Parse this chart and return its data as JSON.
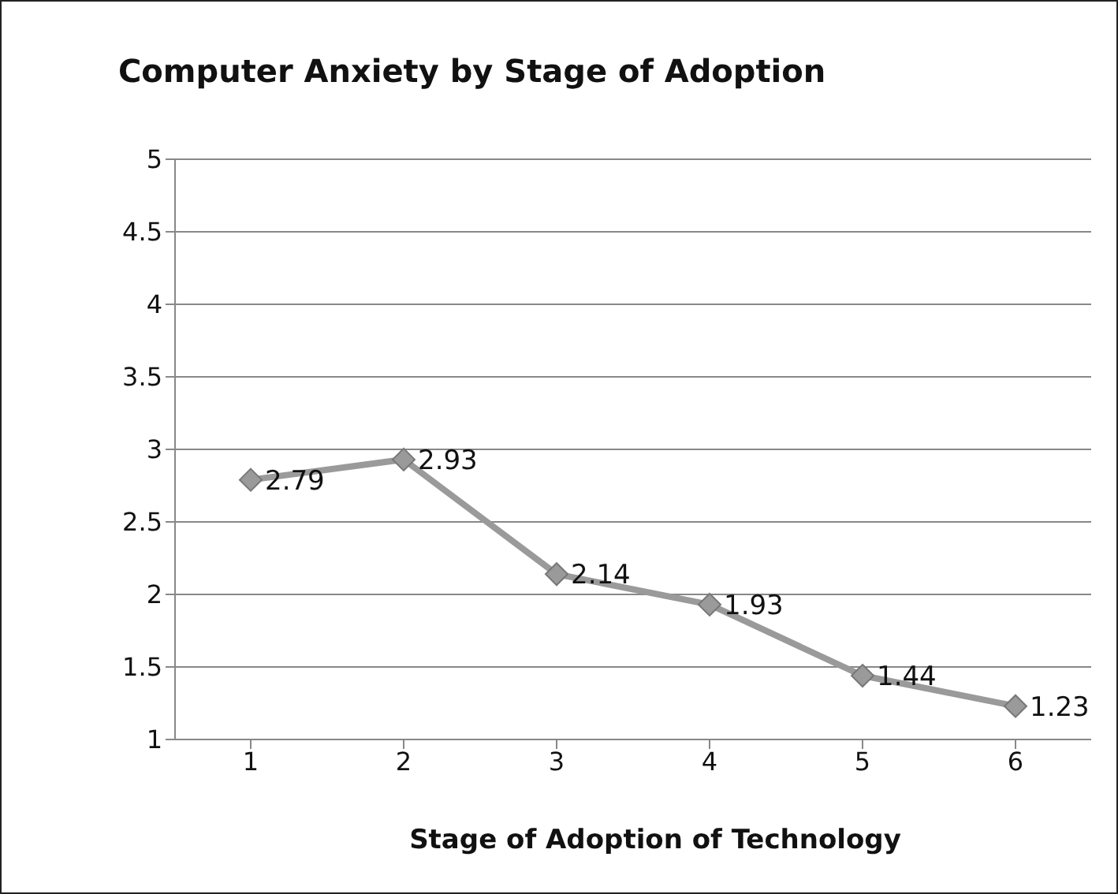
{
  "chart_data": {
    "type": "line",
    "title": "Computer Anxiety by Stage of Adoption",
    "xlabel": "Stage of Adoption of Technology",
    "categories": [
      "1",
      "2",
      "3",
      "4",
      "5",
      "6"
    ],
    "values": [
      2.79,
      2.93,
      2.14,
      1.93,
      1.44,
      1.23
    ],
    "color": "#9a9a9a",
    "marker": "diamond",
    "data_labels": true,
    "ylim": [
      1,
      5
    ],
    "yticks": [
      1,
      1.5,
      2,
      2.5,
      3,
      3.5,
      4,
      4.5,
      5
    ],
    "grid": "y",
    "legend": false
  }
}
